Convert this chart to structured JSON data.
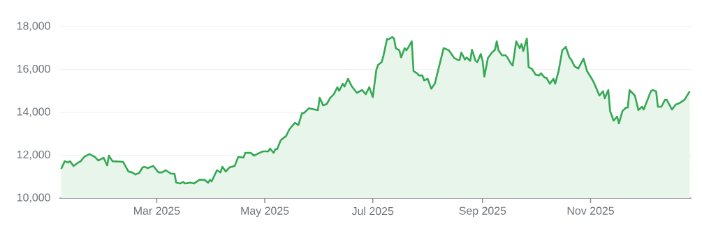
{
  "chart_data": {
    "type": "area",
    "color": "#34a853",
    "grid": "y",
    "xlim": [
      "2025-01-05",
      "2025-12-28"
    ],
    "ylim": [
      10000,
      18000
    ],
    "xticks": [
      {
        "value": "2025-03-01",
        "label": "Mar 2025"
      },
      {
        "value": "2025-05-01",
        "label": "May 2025"
      },
      {
        "value": "2025-07-01",
        "label": "Jul 2025"
      },
      {
        "value": "2025-09-01",
        "label": "Sep 2025"
      },
      {
        "value": "2025-11-01",
        "label": "Nov 2025"
      }
    ],
    "yticks": [
      {
        "value": 10000,
        "label": "10,000"
      },
      {
        "value": 12000,
        "label": "12,000"
      },
      {
        "value": 14000,
        "label": "14,000"
      },
      {
        "value": 16000,
        "label": "16,000"
      },
      {
        "value": 18000,
        "label": "18,000"
      }
    ],
    "x": [
      "2025-01-06",
      "2025-01-08",
      "2025-01-10",
      "2025-01-11",
      "2025-01-13",
      "2025-01-15",
      "2025-01-17",
      "2025-01-19",
      "2025-01-22",
      "2025-01-25",
      "2025-01-27",
      "2025-01-30",
      "2025-02-01",
      "2025-02-02",
      "2025-02-04",
      "2025-02-10",
      "2025-02-13",
      "2025-02-15",
      "2025-02-17",
      "2025-02-19",
      "2025-02-21",
      "2025-02-22",
      "2025-02-24",
      "2025-02-27",
      "2025-02-28",
      "2025-03-02",
      "2025-03-04",
      "2025-03-06",
      "2025-03-09",
      "2025-03-11",
      "2025-03-12",
      "2025-03-14",
      "2025-03-16",
      "2025-03-17",
      "2025-03-20",
      "2025-03-22",
      "2025-03-25",
      "2025-03-28",
      "2025-03-30",
      "2025-03-31",
      "2025-04-01",
      "2025-04-04",
      "2025-04-06",
      "2025-04-07",
      "2025-04-09",
      "2025-04-11",
      "2025-04-14",
      "2025-04-16",
      "2025-04-19",
      "2025-04-20",
      "2025-04-23",
      "2025-04-25",
      "2025-04-28",
      "2025-04-30",
      "2025-05-03",
      "2025-05-04",
      "2025-05-06",
      "2025-05-07",
      "2025-05-08",
      "2025-05-10",
      "2025-05-13",
      "2025-05-15",
      "2025-05-18",
      "2025-05-20",
      "2025-05-22",
      "2025-05-23",
      "2025-05-26",
      "2025-05-31",
      "2025-06-01",
      "2025-06-03",
      "2025-06-05",
      "2025-06-07",
      "2025-06-09",
      "2025-06-11",
      "2025-06-12",
      "2025-06-14",
      "2025-06-15",
      "2025-06-17",
      "2025-06-19",
      "2025-06-22",
      "2025-06-25",
      "2025-06-27",
      "2025-06-29",
      "2025-07-01",
      "2025-07-03",
      "2025-07-04",
      "2025-07-06",
      "2025-07-07",
      "2025-07-09",
      "2025-07-10",
      "2025-07-12",
      "2025-07-13",
      "2025-07-14",
      "2025-07-16",
      "2025-07-17",
      "2025-07-19",
      "2025-07-20",
      "2025-07-21",
      "2025-07-23",
      "2025-07-24",
      "2025-07-26",
      "2025-07-27",
      "2025-07-29",
      "2025-07-30",
      "2025-08-01",
      "2025-08-03",
      "2025-08-05",
      "2025-08-10",
      "2025-08-13",
      "2025-08-16",
      "2025-08-18",
      "2025-08-19",
      "2025-08-20",
      "2025-08-22",
      "2025-08-23",
      "2025-08-25",
      "2025-08-26",
      "2025-08-28",
      "2025-08-29",
      "2025-08-31",
      "2025-09-01",
      "2025-09-02",
      "2025-09-04",
      "2025-09-06",
      "2025-09-08",
      "2025-09-09",
      "2025-09-10",
      "2025-09-12",
      "2025-09-14",
      "2025-09-15",
      "2025-09-17",
      "2025-09-18",
      "2025-09-20",
      "2025-09-22",
      "2025-09-23",
      "2025-09-24",
      "2025-09-26",
      "2025-09-27",
      "2025-09-29",
      "2025-10-01",
      "2025-10-03",
      "2025-10-04",
      "2025-10-06",
      "2025-10-07",
      "2025-10-09",
      "2025-10-11",
      "2025-10-12",
      "2025-10-14",
      "2025-10-16",
      "2025-10-18",
      "2025-10-20",
      "2025-10-21",
      "2025-10-23",
      "2025-10-25",
      "2025-10-28",
      "2025-10-30",
      "2025-11-02",
      "2025-11-03",
      "2025-11-06",
      "2025-11-08",
      "2025-11-09",
      "2025-11-11",
      "2025-11-12",
      "2025-11-14",
      "2025-11-16",
      "2025-11-17",
      "2025-11-19",
      "2025-11-21",
      "2025-11-22",
      "2025-11-23",
      "2025-11-26",
      "2025-11-28",
      "2025-11-30",
      "2025-12-01",
      "2025-12-05",
      "2025-12-06",
      "2025-12-08",
      "2025-12-09",
      "2025-12-11",
      "2025-12-13",
      "2025-12-14",
      "2025-12-17",
      "2025-12-19",
      "2025-12-21",
      "2025-12-24",
      "2025-12-27"
    ],
    "values": [
      11360,
      11720,
      11660,
      11720,
      11500,
      11620,
      11720,
      11920,
      12050,
      11920,
      11750,
      11880,
      11520,
      11980,
      11720,
      11690,
      11240,
      11200,
      11100,
      11170,
      11430,
      11460,
      11400,
      11500,
      11400,
      11200,
      11200,
      11300,
      11140,
      11140,
      10720,
      10680,
      10750,
      10680,
      10720,
      10680,
      10850,
      10850,
      10720,
      10850,
      10780,
      11300,
      11200,
      11460,
      11240,
      11430,
      11500,
      11920,
      11890,
      12110,
      12110,
      11980,
      12110,
      12180,
      12180,
      12310,
      12110,
      12280,
      12280,
      12700,
      12890,
      13220,
      13510,
      13410,
      13960,
      13960,
      14190,
      14100,
      14680,
      14320,
      14390,
      14680,
      14840,
      15170,
      15000,
      15330,
      15200,
      15560,
      15230,
      14910,
      15040,
      14840,
      15170,
      14710,
      15980,
      16210,
      16340,
      16630,
      17410,
      17410,
      17510,
      17440,
      16990,
      16890,
      16560,
      16990,
      16890,
      17020,
      17310,
      15920,
      15820,
      15720,
      15720,
      15490,
      15560,
      15100,
      15330,
      16990,
      16890,
      16530,
      16440,
      16440,
      16790,
      16460,
      16560,
      16400,
      16920,
      16400,
      16340,
      16720,
      16400,
      15660,
      16530,
      16760,
      16920,
      17310,
      16890,
      16660,
      16660,
      16560,
      16270,
      16180,
      17310,
      16990,
      17180,
      16860,
      17440,
      16110,
      16010,
      15750,
      15720,
      15820,
      15620,
      15620,
      15330,
      15560,
      15330,
      15950,
      16890,
      17050,
      16560,
      16460,
      16140,
      16040,
      16500,
      15920,
      15520,
      15360,
      14780,
      14980,
      14650,
      15040,
      14060,
      13610,
      13800,
      13480,
      14060,
      14220,
      14220,
      15040,
      14780,
      14100,
      14260,
      14130,
      14980,
      15040,
      14980,
      14260,
      14260,
      14580,
      14580,
      14130,
      14360,
      14420,
      14580,
      14980
    ]
  }
}
